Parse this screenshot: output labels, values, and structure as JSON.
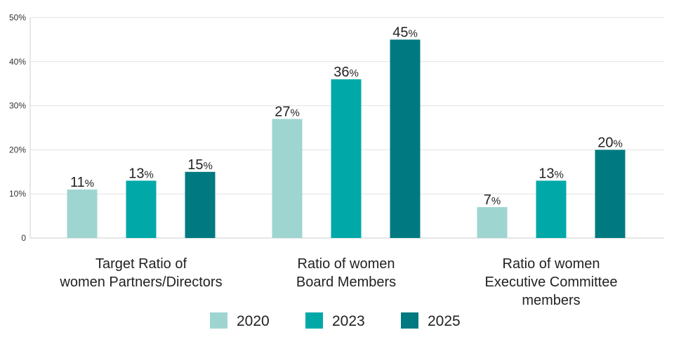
{
  "chart_data": {
    "type": "bar",
    "categories": [
      [
        "Target Ratio of",
        "women Partners/Directors"
      ],
      [
        "Ratio of women",
        "Board Members"
      ],
      [
        "Ratio of women",
        "Executive Committee",
        "members"
      ]
    ],
    "series": [
      {
        "name": "2020",
        "color": "#9fd5d1",
        "values": [
          11,
          27,
          7
        ]
      },
      {
        "name": "2023",
        "color": "#00a9a8",
        "values": [
          13,
          36,
          13
        ]
      },
      {
        "name": "2025",
        "color": "#007a80",
        "values": [
          15,
          45,
          20
        ]
      }
    ],
    "value_suffix": "%",
    "yticks": [
      "0",
      "10%",
      "20%",
      "30%",
      "40%",
      "50%"
    ],
    "ylim": [
      0,
      50
    ],
    "grid": true,
    "legend_position": "bottom",
    "title": "",
    "xlabel": "",
    "ylabel": ""
  }
}
